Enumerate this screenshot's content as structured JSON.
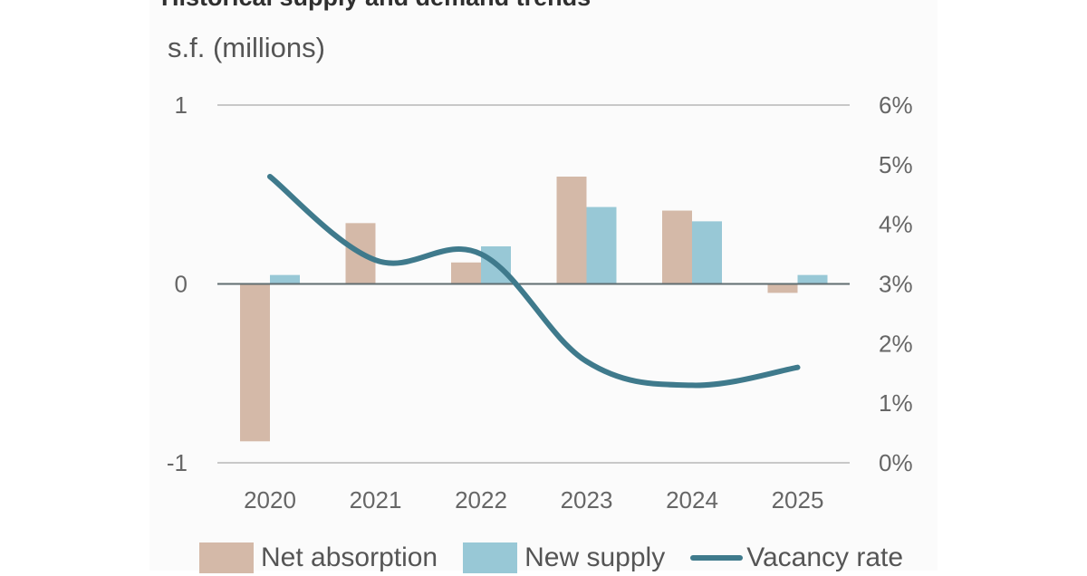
{
  "title": "Historical supply and demand trends",
  "unit_label": "s.f. (millions)",
  "legend": {
    "net_absorption": "Net absorption",
    "new_supply": "New supply",
    "vacancy_rate": "Vacancy rate"
  },
  "colors": {
    "net_absorption": "#d4b9a8",
    "new_supply": "#98c8d6",
    "vacancy_rate": "#3f7a8c",
    "gridline": "#c8c8c8",
    "zero_line": "#606d70"
  },
  "chart_data": {
    "type": "bar",
    "title": "Historical supply and demand trends",
    "ylabel": "s.f. (millions)",
    "categories": [
      "2020",
      "2021",
      "2022",
      "2023",
      "2024",
      "2025"
    ],
    "series": [
      {
        "name": "Net absorption",
        "type": "bar",
        "axis": "left",
        "values": [
          -0.88,
          0.34,
          0.12,
          0.6,
          0.41,
          -0.05
        ]
      },
      {
        "name": "New supply",
        "type": "bar",
        "axis": "left",
        "values": [
          0.05,
          0,
          0.21,
          0.43,
          0.35,
          0.05
        ]
      },
      {
        "name": "Vacancy rate",
        "type": "line",
        "axis": "right",
        "values": [
          4.8,
          3.4,
          3.5,
          1.7,
          1.3,
          1.6
        ]
      }
    ],
    "ylim": [
      -1,
      1
    ],
    "yticks": [
      "1",
      "0",
      "-1"
    ],
    "y2lim": [
      0,
      6
    ],
    "y2ticks": [
      "6%",
      "5%",
      "4%",
      "3%",
      "2%",
      "1%",
      "0%"
    ],
    "grid": true,
    "legend_position": "bottom"
  }
}
